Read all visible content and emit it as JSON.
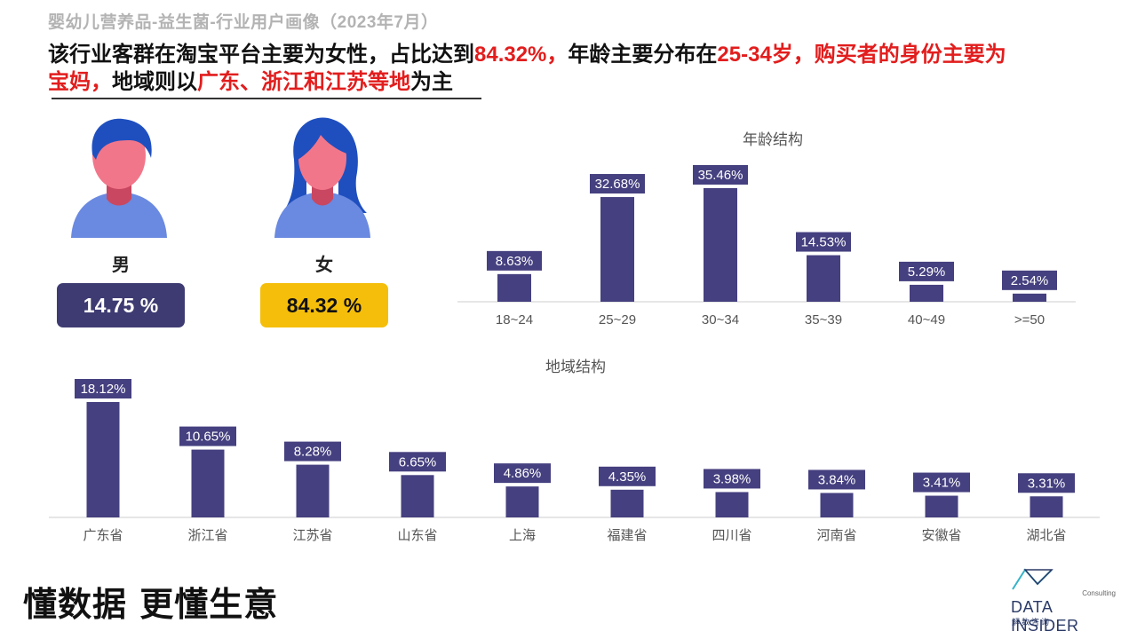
{
  "header": {
    "title": "婴幼儿营养品-益生菌-行业用户画像（2023年7月）",
    "headline": [
      {
        "text": "该行业客群在淘宝平台主要为女性，占比达到",
        "hl": false
      },
      {
        "text": "84.32%，",
        "hl": true
      },
      {
        "text": "年龄主要分布在",
        "hl": false
      },
      {
        "text": "25-34岁，购买者的身份主要为宝妈，",
        "hl": true
      },
      {
        "text": "地域则以",
        "hl": false
      },
      {
        "text": "广东、浙江和江苏等地",
        "hl": true
      },
      {
        "text": "为主",
        "hl": false
      }
    ]
  },
  "gender": {
    "male": {
      "label": "男",
      "value": "14.75 %",
      "pill_color": "#3e3b72"
    },
    "female": {
      "label": "女",
      "value": "84.32 %",
      "pill_color": "#f5be0b"
    }
  },
  "colors": {
    "bar": "#45407f",
    "avatar_hair": "#1f4fbf",
    "avatar_skin": "#f2768a",
    "avatar_body": "#6a89e0"
  },
  "chart_data": [
    {
      "type": "bar",
      "title": "年龄结构",
      "categories": [
        "18~24",
        "25~29",
        "30~34",
        "35~39",
        "40~49",
        ">=50"
      ],
      "values": [
        8.63,
        32.68,
        35.46,
        14.53,
        5.29,
        2.54
      ],
      "labels": [
        "8.63%",
        "32.68%",
        "35.46%",
        "14.53%",
        "5.29%",
        "2.54%"
      ],
      "unit": "%",
      "grid": false
    },
    {
      "type": "bar",
      "title": "地域结构",
      "categories": [
        "广东省",
        "浙江省",
        "江苏省",
        "山东省",
        "上海",
        "福建省",
        "四川省",
        "河南省",
        "安徽省",
        "湖北省"
      ],
      "values": [
        18.12,
        10.65,
        8.28,
        6.65,
        4.86,
        4.35,
        3.98,
        3.84,
        3.41,
        3.31
      ],
      "labels": [
        "18.12%",
        "10.65%",
        "8.28%",
        "6.65%",
        "4.86%",
        "4.35%",
        "3.98%",
        "3.84%",
        "3.41%",
        "3.31%"
      ],
      "unit": "%",
      "grid": false
    }
  ],
  "footer": {
    "slogan": "懂数据 更懂生意",
    "logo_consulting": "Consulting",
    "logo_brand": "DATA INSIDER",
    "logo_sub": "解数咨询"
  }
}
